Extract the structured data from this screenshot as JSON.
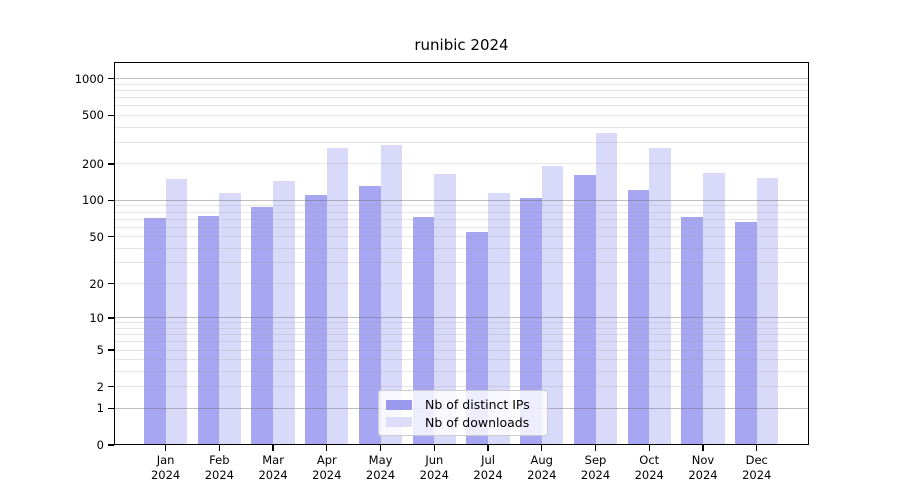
{
  "title": "runibic 2024",
  "chart_data": {
    "type": "bar",
    "title": "runibic 2024",
    "categories": [
      {
        "month": "Jan",
        "year": "2024"
      },
      {
        "month": "Feb",
        "year": "2024"
      },
      {
        "month": "Mar",
        "year": "2024"
      },
      {
        "month": "Apr",
        "year": "2024"
      },
      {
        "month": "May",
        "year": "2024"
      },
      {
        "month": "Jun",
        "year": "2024"
      },
      {
        "month": "Jul",
        "year": "2024"
      },
      {
        "month": "Aug",
        "year": "2024"
      },
      {
        "month": "Sep",
        "year": "2024"
      },
      {
        "month": "Oct",
        "year": "2024"
      },
      {
        "month": "Nov",
        "year": "2024"
      },
      {
        "month": "Dec",
        "year": "2024"
      }
    ],
    "series": [
      {
        "name": "Nb of distinct IPs",
        "bar_color": "#a6a6f2",
        "swatch_color": "#9999ee",
        "values": [
          71,
          74,
          88,
          110,
          131,
          73,
          55,
          105,
          162,
          121,
          73,
          66
        ]
      },
      {
        "name": "Nb of downloads",
        "bar_color": "#d9d9fa",
        "swatch_color": "#ddddfa",
        "values": [
          150,
          116,
          145,
          268,
          288,
          165,
          116,
          193,
          360,
          268,
          168,
          153
        ]
      }
    ],
    "y_axis": {
      "scale": "log10(value+1)",
      "top_value": 1372,
      "ticks": [
        1000,
        500,
        200,
        100,
        50,
        20,
        10,
        5,
        2,
        1,
        0
      ]
    },
    "grid": {
      "values": [
        1,
        2,
        3,
        4,
        5,
        6,
        7,
        8,
        9,
        10,
        20,
        30,
        40,
        50,
        60,
        70,
        80,
        90,
        100,
        200,
        300,
        400,
        500,
        600,
        700,
        800,
        900,
        1000
      ],
      "major_values": [
        1,
        10,
        100,
        1000
      ],
      "major_color": "#b4b4b4",
      "minor_color": "#e8e8e8"
    },
    "legend_position": "lower center"
  }
}
